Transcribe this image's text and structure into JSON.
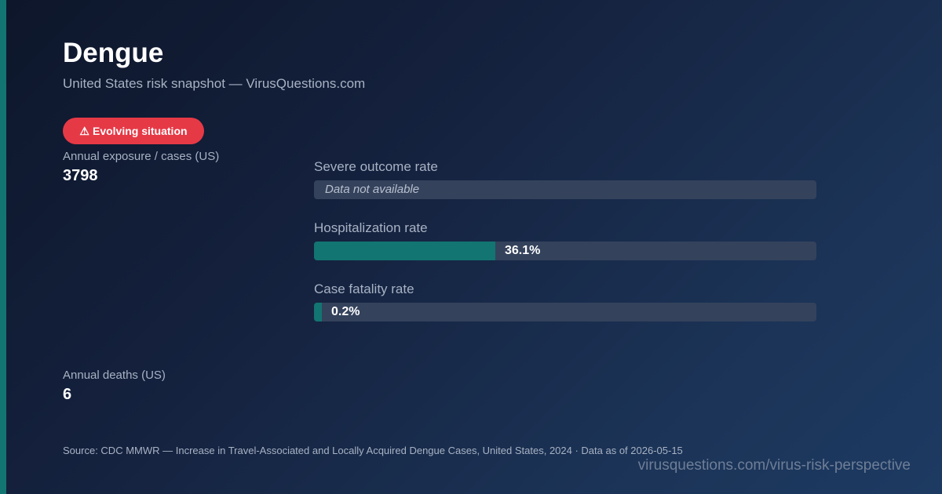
{
  "header": {
    "title": "Dengue",
    "subtitle": "United States risk snapshot — VirusQuestions.com"
  },
  "badge": {
    "icon": "warning-icon",
    "icon_glyph": "⚠",
    "label": "Evolving situation",
    "color": "#e63946"
  },
  "stats": {
    "exposure": {
      "label": "Annual exposure / cases (US)",
      "value": "3798"
    },
    "deaths": {
      "label": "Annual deaths (US)",
      "value": "6"
    }
  },
  "metrics": [
    {
      "label": "Severe outcome rate",
      "value_text": "Data not available",
      "percent": null
    },
    {
      "label": "Hospitalization rate",
      "value_text": "36.1%",
      "percent": 36.1
    },
    {
      "label": "Case fatality rate",
      "value_text": "0.2%",
      "percent": 0.2
    }
  ],
  "colors": {
    "accent": "#127571",
    "bar_fill": "#127571",
    "bar_track": "#34425c",
    "badge": "#e63946"
  },
  "footer": {
    "source": "Source: CDC MMWR — Increase in Travel-Associated and Locally Acquired Dengue Cases, United States, 2024 · Data as of 2026-05-15",
    "url": "virusquestions.com/virus-risk-perspective"
  }
}
